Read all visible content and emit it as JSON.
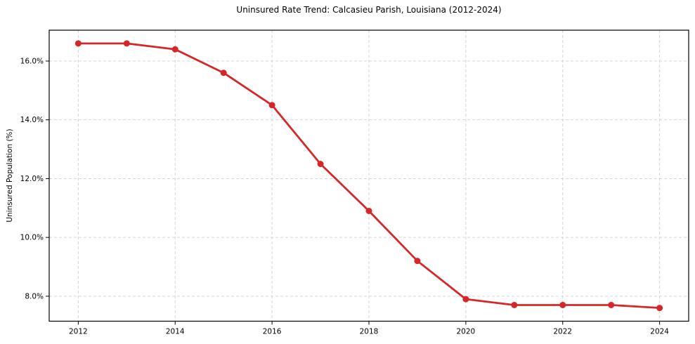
{
  "chart_data": {
    "type": "line",
    "title": "Uninsured Rate Trend: Calcasieu Parish, Louisiana (2012-2024)",
    "xlabel": "",
    "ylabel": "Uninsured Population (%)",
    "x": [
      2012,
      2013,
      2014,
      2015,
      2016,
      2017,
      2018,
      2019,
      2020,
      2021,
      2022,
      2023,
      2024
    ],
    "values": [
      16.6,
      16.6,
      16.4,
      15.6,
      14.5,
      12.5,
      10.9,
      9.2,
      7.9,
      7.7,
      7.7,
      7.7,
      7.6
    ],
    "xlim": [
      2011.4,
      2024.6
    ],
    "ylim": [
      7.15,
      17.05
    ],
    "xticks": {
      "values": [
        2012,
        2014,
        2016,
        2018,
        2020,
        2022,
        2024
      ],
      "labels": [
        "2012",
        "2014",
        "2016",
        "2018",
        "2020",
        "2022",
        "2024"
      ]
    },
    "yticks": {
      "values": [
        8,
        10,
        12,
        14,
        16
      ],
      "labels": [
        "8.0%",
        "10.0%",
        "12.0%",
        "14.0%",
        "16.0%"
      ]
    },
    "grid": true,
    "legend": "none",
    "line_color": "#d62728",
    "marker_color": "#d62728",
    "grid_color": "#cfcfcf",
    "axis_color": "#000000",
    "background_color": "#ffffff"
  }
}
